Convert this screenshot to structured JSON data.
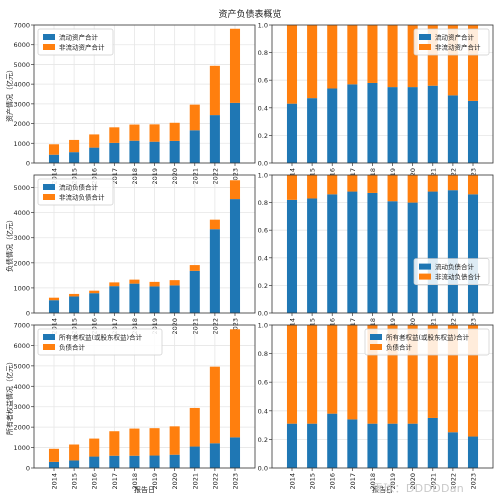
{
  "title": "资产负债表概览",
  "watermark": "雪球：DDDDDan",
  "colors": {
    "blue": "#1f77b4",
    "orange": "#ff7f0e",
    "grid": "#e6e6e6",
    "axis": "#333333"
  },
  "chart_data": [
    {
      "type": "bar",
      "stacked": true,
      "grid": true,
      "legend_position": "top-left",
      "ylabel": "资产情况（亿元）",
      "xlabel": "",
      "ylim": [
        0,
        7000
      ],
      "yticks": [
        0,
        1000,
        2000,
        3000,
        4000,
        5000,
        6000,
        7000
      ],
      "categories": [
        "2014",
        "2015",
        "2016",
        "2017",
        "2018",
        "2019",
        "2020",
        "2021",
        "2022",
        "2023"
      ],
      "series": [
        {
          "name": "流动资产合计",
          "color": "#1f77b4",
          "values": [
            420,
            550,
            780,
            1020,
            1130,
            1080,
            1120,
            1660,
            2430,
            3050
          ]
        },
        {
          "name": "非流动资产合计",
          "color": "#ff7f0e",
          "values": [
            530,
            620,
            670,
            790,
            820,
            880,
            920,
            1300,
            2500,
            3760
          ]
        }
      ]
    },
    {
      "type": "bar",
      "stacked": true,
      "grid": true,
      "legend_position": "top-right",
      "ylabel": "",
      "xlabel": "",
      "ylim": [
        0,
        1.0
      ],
      "yticks": [
        0.0,
        0.2,
        0.4,
        0.6,
        0.8,
        1.0
      ],
      "categories": [
        "2014",
        "2015",
        "2016",
        "2017",
        "2018",
        "2019",
        "2020",
        "2021",
        "2022",
        "2023"
      ],
      "series": [
        {
          "name": "流动资产合计",
          "color": "#1f77b4",
          "values": [
            0.43,
            0.47,
            0.54,
            0.57,
            0.58,
            0.55,
            0.55,
            0.56,
            0.49,
            0.45
          ]
        },
        {
          "name": "非流动资产合计",
          "color": "#ff7f0e",
          "values": [
            0.57,
            0.53,
            0.46,
            0.43,
            0.42,
            0.45,
            0.45,
            0.44,
            0.51,
            0.55
          ]
        }
      ]
    },
    {
      "type": "bar",
      "stacked": true,
      "grid": true,
      "legend_position": "top-left",
      "ylabel": "负债情况（亿元）",
      "xlabel": "",
      "ylim": [
        0,
        5500
      ],
      "yticks": [
        0,
        1000,
        2000,
        3000,
        4000,
        5000
      ],
      "categories": [
        "2014",
        "2015",
        "2016",
        "2017",
        "2018",
        "2019",
        "2020",
        "2021",
        "2022",
        "2023"
      ],
      "series": [
        {
          "name": "流动负债合计",
          "color": "#1f77b4",
          "values": [
            510,
            660,
            790,
            1070,
            1170,
            1060,
            1100,
            1680,
            3340,
            4540
          ]
        },
        {
          "name": "非流动负债合计",
          "color": "#ff7f0e",
          "values": [
            100,
            100,
            100,
            150,
            160,
            180,
            210,
            230,
            380,
            750
          ]
        }
      ]
    },
    {
      "type": "bar",
      "stacked": true,
      "grid": true,
      "legend_position": "center-right",
      "ylabel": "",
      "xlabel": "",
      "ylim": [
        0,
        1.0
      ],
      "yticks": [
        0.0,
        0.2,
        0.4,
        0.6,
        0.8,
        1.0
      ],
      "categories": [
        "2014",
        "2015",
        "2016",
        "2017",
        "2018",
        "2019",
        "2020",
        "2021",
        "2022",
        "2023"
      ],
      "series": [
        {
          "name": "流动负债合计",
          "color": "#1f77b4",
          "values": [
            0.82,
            0.83,
            0.86,
            0.88,
            0.87,
            0.81,
            0.8,
            0.88,
            0.89,
            0.86
          ]
        },
        {
          "name": "非流动负债合计",
          "color": "#ff7f0e",
          "values": [
            0.18,
            0.17,
            0.14,
            0.12,
            0.13,
            0.19,
            0.2,
            0.12,
            0.11,
            0.14
          ]
        }
      ]
    },
    {
      "type": "bar",
      "stacked": true,
      "grid": true,
      "legend_position": "top-left",
      "ylabel": "所有者权益情况（亿元）",
      "xlabel": "报告日",
      "ylim": [
        0,
        7000
      ],
      "yticks": [
        0,
        1000,
        2000,
        3000,
        4000,
        5000,
        6000,
        7000
      ],
      "categories": [
        "2014",
        "2015",
        "2016",
        "2017",
        "2018",
        "2019",
        "2020",
        "2021",
        "2022",
        "2023"
      ],
      "series": [
        {
          "name": "所有者权益(或股东权益)合计",
          "color": "#1f77b4",
          "values": [
            300,
            370,
            560,
            600,
            600,
            610,
            650,
            1050,
            1210,
            1500
          ]
        },
        {
          "name": "负债合计",
          "color": "#ff7f0e",
          "values": [
            640,
            780,
            880,
            1200,
            1330,
            1340,
            1390,
            1890,
            3750,
            5290
          ]
        }
      ]
    },
    {
      "type": "bar",
      "stacked": true,
      "grid": true,
      "legend_position": "top-right",
      "ylabel": "",
      "xlabel": "报告日",
      "ylim": [
        0,
        1.0
      ],
      "yticks": [
        0.0,
        0.2,
        0.4,
        0.6,
        0.8,
        1.0
      ],
      "categories": [
        "2014",
        "2015",
        "2016",
        "2017",
        "2018",
        "2019",
        "2020",
        "2021",
        "2022",
        "2023"
      ],
      "series": [
        {
          "name": "所有者权益(或股东权益)合计",
          "color": "#1f77b4",
          "values": [
            0.31,
            0.31,
            0.38,
            0.34,
            0.31,
            0.31,
            0.31,
            0.35,
            0.25,
            0.22
          ]
        },
        {
          "name": "负债合计",
          "color": "#ff7f0e",
          "values": [
            0.69,
            0.69,
            0.62,
            0.66,
            0.69,
            0.69,
            0.69,
            0.65,
            0.75,
            0.78
          ]
        }
      ]
    }
  ]
}
